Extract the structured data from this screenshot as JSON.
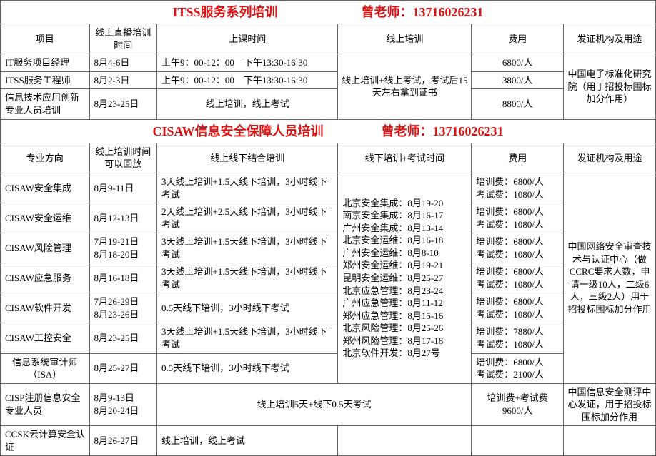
{
  "s1": {
    "title": "ITSS服务系列培训",
    "contact_label": "曾老师：",
    "contact_phone": "13716026231",
    "headers": [
      "项目",
      "线上直播培训时间",
      "上课时间",
      "线上培训",
      "费用",
      "发证机构及用途"
    ],
    "online_note": "线上培训+线上考试，考试后15天左右拿到证书",
    "issuer": "中国电子标准化研究院（用于招投标围标加分作用）",
    "rows": [
      {
        "name": "IT服务项目经理",
        "date": "8月4-6日",
        "time": "上午9：00-12：00　下午13:30-16:30",
        "fee": "6800/人"
      },
      {
        "name": "ITSS服务工程师",
        "date": "8月2-3日",
        "time": "上午9：00-12：00　下午13:30-16:30",
        "fee": "3800/人"
      },
      {
        "name": "信息技术应用创新专业人员培训",
        "date": "8月23-25日",
        "time": "线上培训，线上考试",
        "fee": "8800/人"
      }
    ]
  },
  "s2": {
    "title": "CISAW信息安全保障人员培训",
    "contact_label": "曾老师：",
    "contact_phone": "13716026231",
    "headers": [
      "专业方向",
      "线上培训时间可以回放",
      "线上线下结合培训",
      "线下培训+考试时间",
      "费用",
      "发证机构及用途"
    ],
    "city_schedule": "北京安全集成：8月19-20\n南京安全集成：8月16-17\n广州安全集成：8月13-14\n北京安全运维：8月16-18\n广州安全运维：8月8-10\n郑州安全运维：8月19-21\n昆明安全运维：8月25-27\n北京应急管理：8月23-24\n广州应急管理：8月11-12\n郑州应急管理：8月15-16\n北京风险管理：8月25-26\n郑州风险管理：8月17-18\n北京软件开发：8月27号",
    "issuer": "中国网络安全审查技术与认证中心（做CCRC要求人数，申请一级10人，二级6人，三级2人）用于招投标围标加分作用",
    "rows": [
      {
        "name": "CISAW安全集成",
        "date": "8月9-11日",
        "format": "3天线上培训+1.5天线下培训，3小时线下考试",
        "fee": "培训费：6800/人\n考试费：1080/人"
      },
      {
        "name": "CISAW安全运维",
        "date": "8月12-13日",
        "format": "2天线上培训+2.5天线下培训，3小时线下考试",
        "fee": "培训费：6800/人\n考试费：1080/人"
      },
      {
        "name": "CISAW风险管理",
        "date": "7月19-21日\n8月18-20日",
        "format": "3天线上培训+1.5天线下培训，3小时线下考试",
        "fee": "培训费：6800/人\n考试费：1080/人"
      },
      {
        "name": "CISAW应急服务",
        "date": "8月16-18日",
        "format": "3天线上培训+1.5天线下培训，3小时线下考试",
        "fee": "培训费：6800/人\n考试费：1080/人"
      },
      {
        "name": "CISAW软件开发",
        "date": "7月26-29日\n8月23-26日",
        "format": "0.5天线下培训，3小时线下考试",
        "fee": "培训费：6800/人\n考试费：1080/人"
      },
      {
        "name": "CISAW工控安全",
        "date": "8月23-25日",
        "format": "3天线上培训+1.5天线下培训，3小时线下考试",
        "fee": "培训费：7880/人\n考试费：1080/人"
      },
      {
        "name": "信息系统审计师（ISA）",
        "date": "8月25-27日",
        "format": "0.5天线下培训，3小时线下考试",
        "fee": "培训费：6800/人\n考试费：2100/人"
      }
    ],
    "cisp": {
      "name": "CISP注册信息安全专业人员",
      "date": "8月9-13日\n8月20-24日",
      "format": "线上培训5天+线下0.5天考试",
      "fee": "培训费+考试费\n9600/人",
      "issuer": "中国信息安全测评中心发证，用于招投标围标加分作用"
    },
    "ccsk": {
      "name": "CCSK云计算安全认证",
      "date": "8月26-27日",
      "format": "线上培训，线上考试"
    }
  }
}
